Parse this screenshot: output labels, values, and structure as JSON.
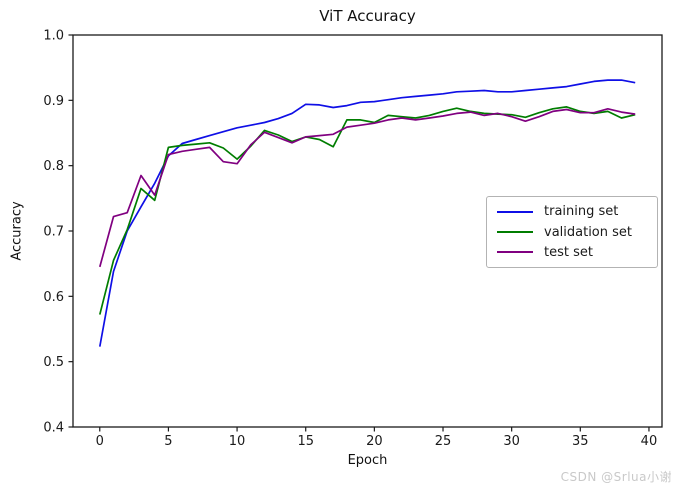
{
  "chart_data": {
    "type": "line",
    "title": "ViT Accuracy",
    "xlabel": "Epoch",
    "ylabel": "Accuracy",
    "xlim": [
      -1.95,
      40.95
    ],
    "ylim": [
      0.4,
      1.0
    ],
    "x_ticks": [
      0,
      5,
      10,
      15,
      20,
      25,
      30,
      35,
      40
    ],
    "y_ticks": [
      0.4,
      0.5,
      0.6,
      0.7,
      0.8,
      0.9,
      1.0
    ],
    "grid": false,
    "legend_position": "center-right",
    "frame_color": "#1a1a1a",
    "x": [
      0,
      1,
      2,
      3,
      4,
      5,
      6,
      7,
      8,
      9,
      10,
      11,
      12,
      13,
      14,
      15,
      16,
      17,
      18,
      19,
      20,
      21,
      22,
      23,
      24,
      25,
      26,
      27,
      28,
      29,
      30,
      31,
      32,
      33,
      34,
      35,
      36,
      37,
      38,
      39
    ],
    "series": [
      {
        "name": "training set",
        "color": "#0f0fe6",
        "values": [
          0.523,
          0.638,
          0.7,
          0.737,
          0.773,
          0.815,
          0.834,
          0.84,
          0.846,
          0.852,
          0.858,
          0.862,
          0.866,
          0.872,
          0.88,
          0.894,
          0.893,
          0.889,
          0.892,
          0.897,
          0.898,
          0.901,
          0.904,
          0.906,
          0.908,
          0.91,
          0.913,
          0.914,
          0.915,
          0.913,
          0.913,
          0.915,
          0.917,
          0.919,
          0.921,
          0.925,
          0.929,
          0.931,
          0.931,
          0.927
        ]
      },
      {
        "name": "validation set",
        "color": "#007d00",
        "values": [
          0.572,
          0.655,
          0.702,
          0.765,
          0.747,
          0.828,
          0.831,
          0.833,
          0.835,
          0.827,
          0.81,
          0.83,
          0.854,
          0.847,
          0.837,
          0.844,
          0.84,
          0.829,
          0.87,
          0.87,
          0.866,
          0.877,
          0.875,
          0.873,
          0.877,
          0.883,
          0.888,
          0.883,
          0.88,
          0.879,
          0.878,
          0.874,
          0.881,
          0.887,
          0.89,
          0.883,
          0.88,
          0.883,
          0.873,
          0.878
        ]
      },
      {
        "name": "test set",
        "color": "#800080",
        "values": [
          0.645,
          0.722,
          0.728,
          0.785,
          0.755,
          0.817,
          0.822,
          0.825,
          0.828,
          0.806,
          0.803,
          0.832,
          0.851,
          0.843,
          0.835,
          0.844,
          0.846,
          0.848,
          0.859,
          0.862,
          0.865,
          0.87,
          0.873,
          0.87,
          0.873,
          0.876,
          0.88,
          0.882,
          0.877,
          0.88,
          0.875,
          0.868,
          0.875,
          0.883,
          0.886,
          0.881,
          0.881,
          0.887,
          0.882,
          0.879
        ]
      }
    ],
    "watermark": "CSDN @Srlua小谢"
  }
}
